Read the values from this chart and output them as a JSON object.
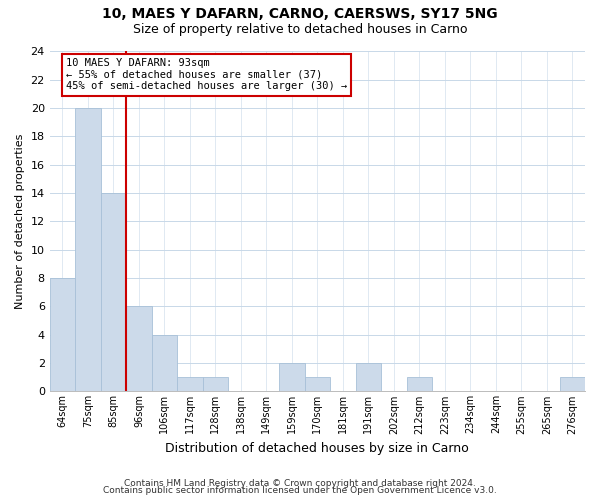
{
  "title": "10, MAES Y DAFARN, CARNO, CAERSWS, SY17 5NG",
  "subtitle": "Size of property relative to detached houses in Carno",
  "xlabel": "Distribution of detached houses by size in Carno",
  "ylabel": "Number of detached properties",
  "bin_labels": [
    "64sqm",
    "75sqm",
    "85sqm",
    "96sqm",
    "106sqm",
    "117sqm",
    "128sqm",
    "138sqm",
    "149sqm",
    "159sqm",
    "170sqm",
    "181sqm",
    "191sqm",
    "202sqm",
    "212sqm",
    "223sqm",
    "234sqm",
    "244sqm",
    "255sqm",
    "265sqm",
    "276sqm"
  ],
  "bar_values": [
    8,
    20,
    14,
    6,
    4,
    1,
    1,
    0,
    0,
    2,
    1,
    0,
    2,
    0,
    1,
    0,
    0,
    0,
    0,
    0,
    1
  ],
  "bar_color": "#ccdaea",
  "bar_edge_color": "#a8c0d8",
  "vline_x_index": 3,
  "vline_color": "#cc0000",
  "annotation_title": "10 MAES Y DAFARN: 93sqm",
  "annotation_line1": "← 55% of detached houses are smaller (37)",
  "annotation_line2": "45% of semi-detached houses are larger (30) →",
  "annotation_box_color": "#ffffff",
  "annotation_box_edge": "#cc0000",
  "ylim": [
    0,
    24
  ],
  "yticks": [
    0,
    2,
    4,
    6,
    8,
    10,
    12,
    14,
    16,
    18,
    20,
    22,
    24
  ],
  "footer1": "Contains HM Land Registry data © Crown copyright and database right 2024.",
  "footer2": "Contains public sector information licensed under the Open Government Licence v3.0.",
  "background_color": "#ffffff",
  "grid_color": "#c8d8e8"
}
